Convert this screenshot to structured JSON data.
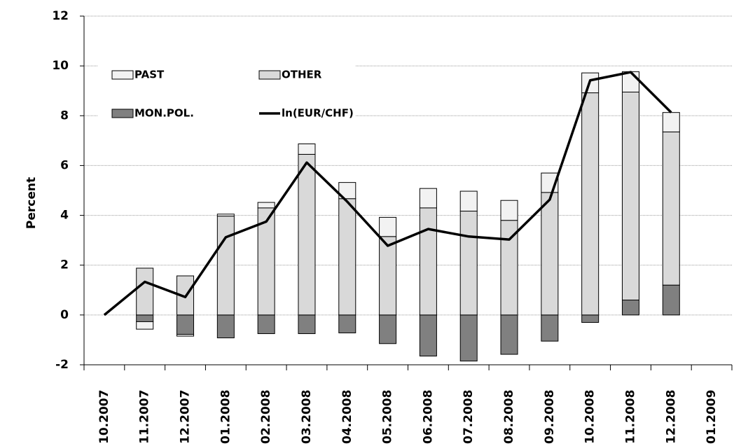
{
  "chart_data": {
    "type": "bar",
    "stacked": true,
    "y_label": "Percent",
    "categories": [
      "10.2007",
      "11.2007",
      "12.2007",
      "01.2008",
      "02.2008",
      "03.2008",
      "04.2008",
      "05.2008",
      "06.2008",
      "07.2008",
      "08.2008",
      "09.2008",
      "10.2008",
      "11.2008",
      "12.2008",
      "01.2009"
    ],
    "ylim": [
      -2,
      12
    ],
    "yticks": [
      -2,
      0,
      2,
      4,
      6,
      8,
      10,
      12
    ],
    "grid": true,
    "series": [
      {
        "name": "PAST",
        "color": "#f2f2f2",
        "type": "bar",
        "values": [
          null,
          -0.3,
          -0.07,
          0.08,
          0.22,
          0.42,
          0.65,
          0.77,
          0.78,
          0.8,
          0.8,
          0.78,
          0.8,
          0.82,
          0.78,
          null
        ]
      },
      {
        "name": "OTHER",
        "color": "#d9d9d9",
        "type": "bar",
        "values": [
          null,
          1.88,
          1.57,
          3.97,
          4.3,
          6.45,
          4.67,
          3.15,
          4.3,
          4.17,
          3.8,
          4.92,
          8.92,
          8.35,
          6.15,
          null
        ]
      },
      {
        "name": "MON.POL.",
        "color": "#808080",
        "type": "bar",
        "values": [
          null,
          -0.27,
          -0.78,
          -0.92,
          -0.75,
          -0.75,
          -0.72,
          -1.15,
          -1.65,
          -1.85,
          -1.58,
          -1.05,
          -0.3,
          0.6,
          1.2,
          null
        ]
      },
      {
        "name": "ln(EUR/CHF)",
        "color": "#000000",
        "type": "line",
        "values": [
          0,
          1.33,
          0.72,
          3.12,
          3.75,
          6.12,
          4.55,
          2.78,
          3.45,
          3.15,
          3.03,
          4.63,
          9.42,
          9.75,
          8.13,
          null
        ]
      }
    ]
  }
}
